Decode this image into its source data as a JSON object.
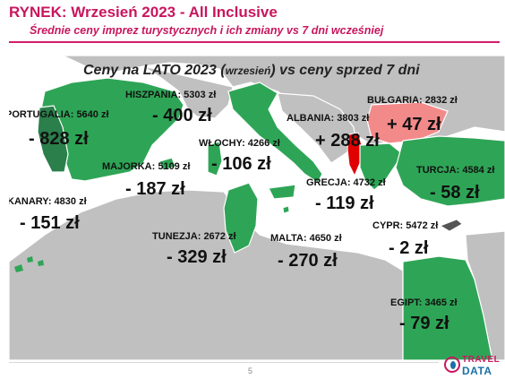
{
  "header": {
    "title": "RYNEK: Wrzesień 2023 - All Inclusive",
    "subtitle": "Średnie ceny imprez turystycznych i ich zmiany vs 7 dni wcześniej"
  },
  "map": {
    "heading_main": "Ceny na LATO 2023 (",
    "heading_small": "wrzesień",
    "heading_end": ") vs ceny sprzed 7 dni",
    "colors": {
      "decrease": "#2ea556",
      "increase": "#f38a8a",
      "neutral": "#c0c0c0",
      "albania": "#e00000"
    },
    "countries": [
      {
        "id": "hiszpania",
        "label": "HISZPANIA: 5303 zł",
        "change": "- 400 zł",
        "trend": "down"
      },
      {
        "id": "portugalia",
        "label": "PORTUGALIA: 5640 zł",
        "change": "- 828 zł",
        "trend": "down"
      },
      {
        "id": "bulgaria",
        "label": "BUŁGARIA: 2832 zł",
        "change": "+ 47 zł",
        "trend": "up"
      },
      {
        "id": "albania",
        "label": "ALBANIA: 3803 zł",
        "change": "+ 288 zł",
        "trend": "up"
      },
      {
        "id": "wlochy",
        "label": "WŁOCHY: 4266 zł",
        "change": "- 106 zł",
        "trend": "down"
      },
      {
        "id": "majorka",
        "label": "MAJORKA: 5109 zł",
        "change": "- 187 zł",
        "trend": "down"
      },
      {
        "id": "turcja",
        "label": "TURCJA: 4584 zł",
        "change": "- 58 zł",
        "trend": "down"
      },
      {
        "id": "grecja",
        "label": "GRECJA: 4732 zł",
        "change": "- 119 zł",
        "trend": "down"
      },
      {
        "id": "kanary",
        "label": "KANARY: 4830 zł",
        "change": "- 151 zł",
        "trend": "down"
      },
      {
        "id": "cypr",
        "label": "CYPR: 5472 zł",
        "change": "- 2 zł",
        "trend": "down"
      },
      {
        "id": "tunezja",
        "label": "TUNEZJA: 2672 zł",
        "change": "- 329 zł",
        "trend": "down"
      },
      {
        "id": "malta",
        "label": "MALTA: 4650 zł",
        "change": "- 270 zł",
        "trend": "down"
      },
      {
        "id": "egipt",
        "label": "EGIPT: 3465 zł",
        "change": "- 79 zł",
        "trend": "down"
      }
    ]
  },
  "footer": {
    "page_number": "5",
    "logo_line1": "TRAVEL",
    "logo_line2": "DATA"
  }
}
